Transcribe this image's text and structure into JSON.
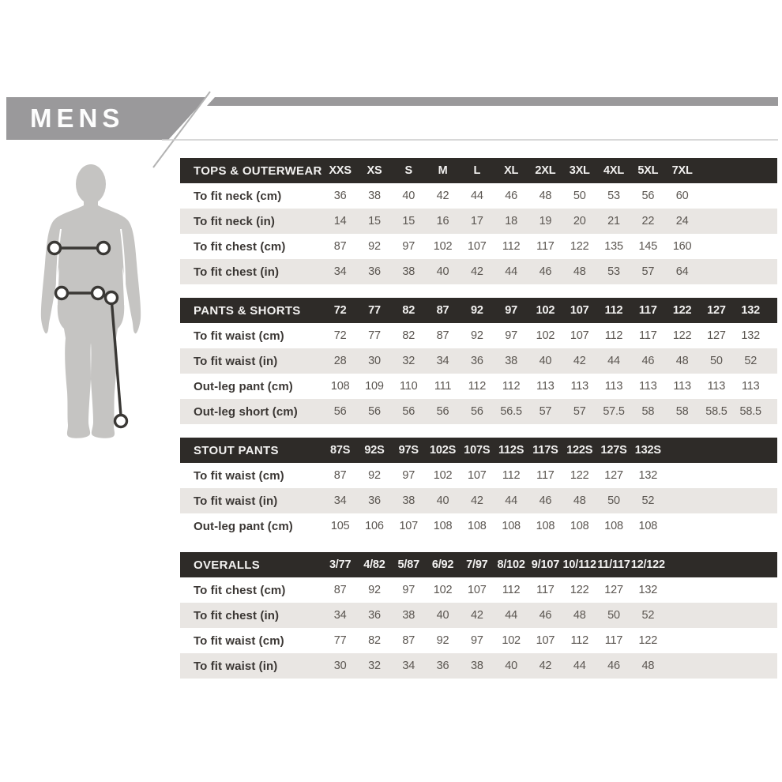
{
  "brand": {
    "title": "MENS"
  },
  "figure": {
    "name": "mens-body-silhouette",
    "markers": [
      "chest-measure",
      "waist-measure",
      "out-leg-measure"
    ]
  },
  "colors": {
    "banner_gray": "#9a999b",
    "header_dark": "#2e2b28",
    "row_shaded": "#e9e6e3",
    "label_text": "#3b3734",
    "value_text": "#5b5651",
    "silhouette_gray": "#c5c4c2",
    "marker_stroke": "#3a3835",
    "rule_light": "#cbcbcb"
  },
  "tables": [
    {
      "header": "TOPS & OUTERWEAR",
      "columns": [
        "XXS",
        "XS",
        "S",
        "M",
        "L",
        "XL",
        "2XL",
        "3XL",
        "4XL",
        "5XL",
        "7XL"
      ],
      "rows": [
        {
          "label": "To fit neck (cm)",
          "values": [
            36,
            38,
            40,
            42,
            44,
            46,
            48,
            50,
            53,
            56,
            60
          ]
        },
        {
          "label": "To fit neck (in)",
          "values": [
            14,
            15,
            15,
            16,
            17,
            18,
            19,
            20,
            21,
            22,
            24
          ]
        },
        {
          "label": "To fit chest (cm)",
          "values": [
            87,
            92,
            97,
            102,
            107,
            112,
            117,
            122,
            135,
            145,
            160
          ]
        },
        {
          "label": "To fit chest (in)",
          "values": [
            34,
            36,
            38,
            40,
            42,
            44,
            46,
            48,
            53,
            57,
            64
          ]
        }
      ]
    },
    {
      "header": "PANTS & SHORTS",
      "columns": [
        72,
        77,
        82,
        87,
        92,
        97,
        102,
        107,
        112,
        117,
        122,
        127,
        132
      ],
      "rows": [
        {
          "label": "To fit waist (cm)",
          "values": [
            72,
            77,
            82,
            87,
            92,
            97,
            102,
            107,
            112,
            117,
            122,
            127,
            132
          ]
        },
        {
          "label": "To fit waist (in)",
          "values": [
            28,
            30,
            32,
            34,
            36,
            38,
            40,
            42,
            44,
            46,
            48,
            50,
            52
          ]
        },
        {
          "label": "Out-leg pant (cm)",
          "values": [
            108,
            109,
            110,
            111,
            112,
            112,
            113,
            113,
            113,
            113,
            113,
            113,
            113
          ]
        },
        {
          "label": "Out-leg short (cm)",
          "values": [
            56,
            56,
            56,
            56,
            56,
            56.5,
            57,
            57,
            57.5,
            58,
            58,
            58.5,
            58.5
          ]
        }
      ]
    },
    {
      "header": "STOUT PANTS",
      "columns": [
        "87S",
        "92S",
        "97S",
        "102S",
        "107S",
        "112S",
        "117S",
        "122S",
        "127S",
        "132S"
      ],
      "rows": [
        {
          "label": "To fit waist (cm)",
          "values": [
            87,
            92,
            97,
            102,
            107,
            112,
            117,
            122,
            127,
            132
          ]
        },
        {
          "label": "To fit waist (in)",
          "values": [
            34,
            36,
            38,
            40,
            42,
            44,
            46,
            48,
            50,
            52
          ]
        },
        {
          "label": "Out-leg pant (cm)",
          "values": [
            105,
            106,
            107,
            108,
            108,
            108,
            108,
            108,
            108,
            108
          ]
        }
      ]
    },
    {
      "header": "OVERALLS",
      "columns": [
        "3/77",
        "4/82",
        "5/87",
        "6/92",
        "7/97",
        "8/102",
        "9/107",
        "10/112",
        "11/117",
        "12/122"
      ],
      "rows": [
        {
          "label": "To fit chest (cm)",
          "values": [
            87,
            92,
            97,
            102,
            107,
            112,
            117,
            122,
            127,
            132
          ]
        },
        {
          "label": "To fit chest (in)",
          "values": [
            34,
            36,
            38,
            40,
            42,
            44,
            46,
            48,
            50,
            52
          ]
        },
        {
          "label": "To fit waist (cm)",
          "values": [
            77,
            82,
            87,
            92,
            97,
            102,
            107,
            112,
            117,
            122
          ]
        },
        {
          "label": "To fit waist (in)",
          "values": [
            30,
            32,
            34,
            36,
            38,
            40,
            42,
            44,
            46,
            48
          ]
        }
      ]
    }
  ]
}
